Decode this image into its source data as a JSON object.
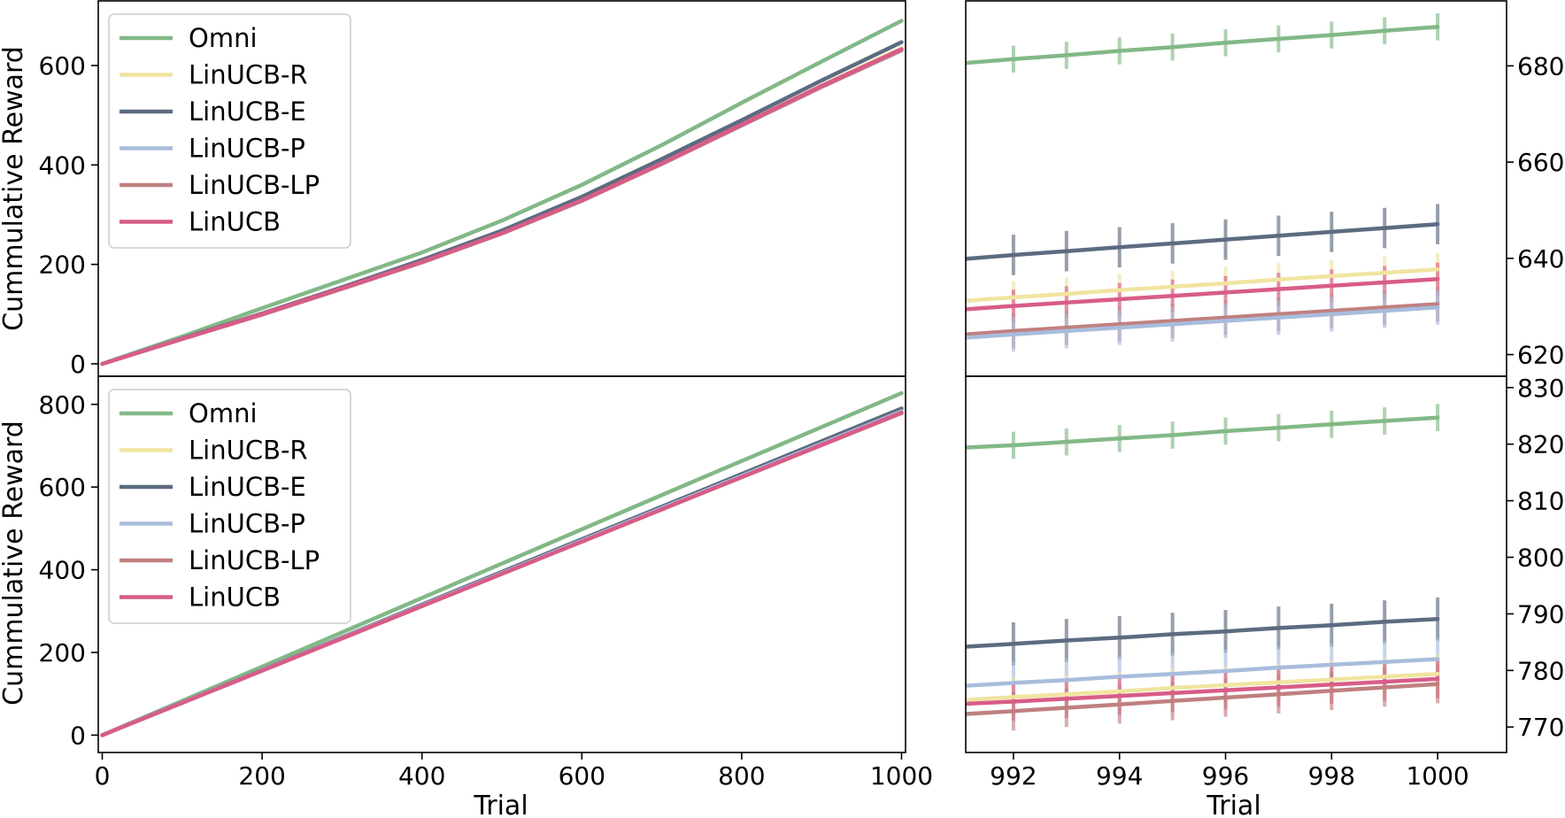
{
  "chart_data": [
    {
      "id": "top-left",
      "type": "line",
      "ylabel": "Cummulative Reward",
      "xlabel": "",
      "xlim": [
        -5,
        1005
      ],
      "ylim": [
        -25,
        730
      ],
      "xticks": [],
      "xtick_labels": [],
      "yticks": [
        0,
        200,
        400,
        600
      ],
      "ytick_labels": [
        "0",
        "200",
        "400",
        "600"
      ],
      "ytick_side": "left",
      "legend": {
        "position": "upper-left"
      },
      "x": [
        0,
        100,
        200,
        300,
        400,
        500,
        600,
        700,
        800,
        900,
        1000
      ],
      "series": [
        {
          "name": "Omni",
          "color": "#82b886",
          "values": [
            0,
            55,
            112,
            168,
            224,
            288,
            360,
            440,
            525,
            608,
            690
          ]
        },
        {
          "name": "LinUCB-R",
          "color": "#f0e4a0",
          "values": [
            0,
            50,
            100,
            152,
            206,
            264,
            330,
            404,
            482,
            560,
            635
          ]
        },
        {
          "name": "LinUCB-E",
          "color": "#5c6b80",
          "values": [
            0,
            51,
            101,
            154,
            209,
            268,
            336,
            412,
            490,
            570,
            647
          ]
        },
        {
          "name": "LinUCB-P",
          "color": "#a8bcdc",
          "values": [
            0,
            50,
            99,
            151,
            204,
            262,
            328,
            402,
            479,
            557,
            630
          ]
        },
        {
          "name": "LinUCB-LP",
          "color": "#c08080",
          "values": [
            0,
            50,
            99,
            151,
            204,
            262,
            328,
            402,
            480,
            557,
            631
          ]
        },
        {
          "name": "LinUCB",
          "color": "#d85c88",
          "values": [
            0,
            50,
            100,
            152,
            205,
            263,
            329,
            403,
            481,
            559,
            633
          ]
        }
      ]
    },
    {
      "id": "top-right",
      "type": "line",
      "xlabel": "",
      "ylabel": "",
      "xlim": [
        991.1,
        1001.3
      ],
      "ylim": [
        615.5,
        693.5
      ],
      "xticks": [],
      "xtick_labels": [],
      "yticks": [
        620,
        640,
        660,
        680
      ],
      "ytick_labels": [
        "620",
        "640",
        "660",
        "680"
      ],
      "ytick_side": "right",
      "errorbars": true,
      "x": [
        991.1,
        992,
        993,
        994,
        995,
        996,
        997,
        998,
        999,
        1000
      ],
      "series": [
        {
          "name": "Omni",
          "color": "#82b886",
          "err": 2.8,
          "values": [
            680.6,
            681.4,
            682.2,
            683.1,
            683.9,
            684.8,
            685.6,
            686.4,
            687.3,
            688.1
          ]
        },
        {
          "name": "LinUCB-E",
          "color": "#5c6b80",
          "err": 4.2,
          "values": [
            639.9,
            640.7,
            641.5,
            642.3,
            643.1,
            643.9,
            644.7,
            645.5,
            646.3,
            647.1
          ]
        },
        {
          "name": "LinUCB-R",
          "color": "#f0e4a0",
          "err": 3.4,
          "values": [
            631.2,
            631.9,
            632.6,
            633.4,
            634.1,
            634.8,
            635.6,
            636.3,
            637.0,
            637.7
          ]
        },
        {
          "name": "LinUCB",
          "color": "#d85c88",
          "err": 3.4,
          "values": [
            629.4,
            630.1,
            630.8,
            631.5,
            632.2,
            632.9,
            633.6,
            634.3,
            635.0,
            635.7
          ]
        },
        {
          "name": "LinUCB-LP",
          "color": "#c08080",
          "err": 3.6,
          "values": [
            624.2,
            624.9,
            625.6,
            626.3,
            627.0,
            627.7,
            628.4,
            629.1,
            629.8,
            630.5
          ]
        },
        {
          "name": "LinUCB-P",
          "color": "#a8bcdc",
          "err": 3.6,
          "values": [
            623.5,
            624.2,
            624.9,
            625.6,
            626.3,
            627.0,
            627.7,
            628.4,
            629.1,
            629.8
          ]
        }
      ]
    },
    {
      "id": "bottom-left",
      "type": "line",
      "ylabel": "Cummulative Reward",
      "xlabel": "Trial",
      "xlim": [
        -5,
        1005
      ],
      "ylim": [
        -42,
        868
      ],
      "xticks": [
        0,
        200,
        400,
        600,
        800,
        1000
      ],
      "xtick_labels": [
        "0",
        "200",
        "400",
        "600",
        "800",
        "1000"
      ],
      "yticks": [
        0,
        200,
        400,
        600,
        800
      ],
      "ytick_labels": [
        "0",
        "200",
        "400",
        "600",
        "800"
      ],
      "ytick_side": "left",
      "legend": {
        "position": "upper-left"
      },
      "x": [
        0,
        250,
        500,
        750,
        1000
      ],
      "series": [
        {
          "name": "Omni",
          "color": "#82b886",
          "values": [
            0,
            207,
            415,
            622,
            827
          ]
        },
        {
          "name": "LinUCB-R",
          "color": "#f0e4a0",
          "values": [
            0,
            195,
            390,
            585,
            780
          ]
        },
        {
          "name": "LinUCB-E",
          "color": "#5c6b80",
          "values": [
            0,
            197,
            395,
            592,
            790
          ]
        },
        {
          "name": "LinUCB-P",
          "color": "#a8bcdc",
          "values": [
            0,
            196,
            392,
            588,
            783
          ]
        },
        {
          "name": "LinUCB-LP",
          "color": "#c08080",
          "values": [
            0,
            195,
            390,
            585,
            779
          ]
        },
        {
          "name": "LinUCB",
          "color": "#d85c88",
          "values": [
            0,
            195,
            390,
            585,
            780
          ]
        }
      ]
    },
    {
      "id": "bottom-right",
      "type": "line",
      "xlabel": "Trial",
      "ylabel": "",
      "xlim": [
        991.1,
        1001.3
      ],
      "ylim": [
        765.5,
        832
      ],
      "xticks": [
        992,
        994,
        996,
        998,
        1000
      ],
      "xtick_labels": [
        "992",
        "994",
        "996",
        "998",
        "1000"
      ],
      "yticks": [
        770,
        780,
        790,
        800,
        810,
        820,
        830
      ],
      "ytick_labels": [
        "770",
        "780",
        "790",
        "800",
        "810",
        "820",
        "830"
      ],
      "ytick_side": "right",
      "errorbars": true,
      "x": [
        991.1,
        992,
        993,
        994,
        995,
        996,
        997,
        998,
        999,
        1000
      ],
      "series": [
        {
          "name": "Omni",
          "color": "#82b886",
          "err": 2.4,
          "values": [
            819.4,
            819.8,
            820.4,
            821.0,
            821.6,
            822.3,
            822.9,
            823.5,
            824.1,
            824.7
          ]
        },
        {
          "name": "LinUCB-E",
          "color": "#5c6b80",
          "err": 3.8,
          "values": [
            784.2,
            784.7,
            785.3,
            785.8,
            786.4,
            786.9,
            787.5,
            788.0,
            788.6,
            789.1
          ]
        },
        {
          "name": "LinUCB-P",
          "color": "#a8bcdc",
          "err": 3.8,
          "values": [
            777.3,
            777.8,
            778.3,
            778.9,
            779.4,
            779.9,
            780.5,
            781.0,
            781.5,
            782.0
          ]
        },
        {
          "name": "LinUCB-R",
          "color": "#f0e4a0",
          "err": 3.4,
          "values": [
            774.8,
            775.3,
            775.8,
            776.3,
            776.9,
            777.4,
            777.9,
            778.4,
            778.9,
            779.4
          ]
        },
        {
          "name": "LinUCB",
          "color": "#d85c88",
          "err": 3.4,
          "values": [
            774.1,
            774.5,
            775.0,
            775.5,
            776.0,
            776.5,
            777.0,
            777.5,
            778.0,
            778.5
          ]
        },
        {
          "name": "LinUCB-LP",
          "color": "#c08080",
          "err": 3.4,
          "values": [
            772.3,
            772.8,
            773.4,
            774.0,
            774.6,
            775.2,
            775.8,
            776.4,
            777.0,
            777.6
          ]
        }
      ]
    }
  ]
}
